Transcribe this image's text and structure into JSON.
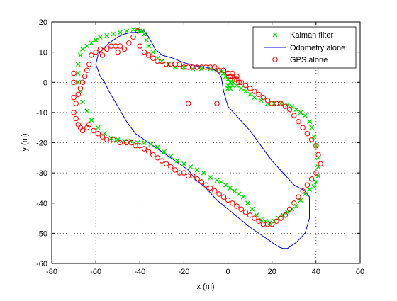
{
  "chart_data": {
    "type": "scatter",
    "xlabel": "x (m)",
    "ylabel": "y (m)",
    "xlim": [
      -80,
      60
    ],
    "ylim": [
      -60,
      20
    ],
    "xticks": [
      -80,
      -60,
      -40,
      -20,
      0,
      20,
      40,
      60
    ],
    "yticks": [
      -60,
      -50,
      -40,
      -30,
      -20,
      -10,
      0,
      10,
      20
    ],
    "xtick_labels": [
      "-80",
      "-60",
      "-40",
      "-20",
      "0",
      "20",
      "40",
      "60"
    ],
    "ytick_labels": [
      "-60",
      "-50",
      "-40",
      "-30",
      "-20",
      "-10",
      "0",
      "10",
      "20"
    ],
    "grid": true,
    "legend_position": "top-right",
    "series": [
      {
        "name": "Kalman filter",
        "marker": "x",
        "color": "#00dd00",
        "x": [
          -40,
          -39,
          -38,
          -37,
          -36,
          -34,
          -32,
          -30,
          -27,
          -24,
          -20,
          -16,
          -12,
          -8,
          -5,
          -3,
          -2,
          -1,
          0,
          2,
          4,
          6,
          8,
          10,
          12,
          15,
          18,
          21,
          24,
          27,
          29,
          31,
          33,
          35,
          37,
          38,
          39,
          40,
          41,
          41,
          41,
          40,
          39,
          37,
          35,
          33,
          31,
          29,
          27,
          25,
          23,
          21,
          19,
          17,
          15,
          13,
          11,
          9,
          7,
          5,
          3,
          1,
          -1,
          -3,
          -5,
          -8,
          -11,
          -14,
          -17,
          -20,
          -23,
          -26,
          -29,
          -32,
          -35,
          -38,
          -41,
          -44,
          -47,
          -50,
          -53,
          -56,
          -59,
          -62,
          -64,
          -66,
          -67,
          -68,
          -68,
          -68,
          -67,
          -66,
          -64,
          -62,
          -60,
          -58,
          -55,
          -52,
          -49,
          -46,
          -43,
          -41,
          0,
          0,
          1,
          1,
          2
        ],
        "y": [
          17,
          17,
          16,
          14,
          12,
          10,
          8,
          7,
          6,
          5,
          5,
          4.5,
          4.5,
          4.5,
          4,
          3.5,
          3,
          2,
          1,
          0,
          -1,
          -2,
          -3,
          -4,
          -5,
          -6,
          -7,
          -7,
          -7,
          -7.5,
          -8,
          -9,
          -10,
          -11,
          -13,
          -15,
          -18,
          -21,
          -25,
          -28,
          -31,
          -33,
          -34.5,
          -35.5,
          -37,
          -39,
          -41,
          -42,
          -43,
          -44,
          -45,
          -46,
          -46.5,
          -46,
          -45.5,
          -44,
          -42,
          -40,
          -38,
          -37,
          -36,
          -35,
          -34,
          -33,
          -32.5,
          -31.5,
          -30,
          -29,
          -28,
          -27,
          -26,
          -24.5,
          -23,
          -21.5,
          -20.5,
          -20,
          -20,
          -19.5,
          -19.5,
          -19,
          -18.5,
          -17,
          -15,
          -12.5,
          -9.5,
          -6.5,
          -3,
          0,
          3,
          6,
          9,
          11,
          12,
          13,
          14,
          15,
          15.5,
          16,
          16.5,
          17,
          17.5,
          17.5,
          -2,
          -1,
          -2,
          0,
          -1
        ]
      },
      {
        "name": "Odometry alone",
        "marker": "line",
        "color": "#0000cc",
        "x": [
          -42,
          -38,
          -36,
          -33,
          -30,
          -25,
          -20,
          -15,
          -10,
          -6,
          -4,
          -3,
          -2,
          0,
          5,
          10,
          15,
          20,
          25,
          30,
          35,
          37,
          37,
          35,
          31,
          27,
          25,
          23,
          20,
          16,
          10,
          5,
          0,
          -5,
          -10,
          -15,
          -18,
          -22,
          -26,
          -30,
          -34,
          -38,
          -42,
          -46,
          -50,
          -54,
          -56,
          -58,
          -59,
          -60,
          -59,
          -57,
          -54,
          -52,
          -50,
          -47,
          -44,
          -42
        ],
        "y": [
          16.5,
          17,
          15,
          11,
          9,
          8,
          6.5,
          5.5,
          5,
          4,
          3,
          1.5,
          -3,
          -8,
          -12,
          -16,
          -21,
          -26,
          -30,
          -34,
          -36,
          -38,
          -45,
          -50,
          -53,
          -55,
          -55,
          -54.5,
          -53,
          -51,
          -48,
          -45,
          -42,
          -39,
          -35,
          -32,
          -29,
          -27,
          -25,
          -23,
          -21,
          -19,
          -17,
          -13,
          -8,
          -3,
          0,
          2,
          4,
          6,
          9,
          11,
          13,
          14,
          15,
          16,
          16.5,
          16.5
        ]
      },
      {
        "name": "GPS alone",
        "marker": "o",
        "color": "#ee0000",
        "x": [
          -41,
          -43,
          -45,
          -47,
          -49,
          -50,
          -51,
          -53,
          -55,
          -57,
          -58,
          -60,
          -62,
          -63,
          -64,
          -65,
          -66,
          -67,
          -68,
          -69,
          -70,
          -70,
          -70,
          -70,
          -69,
          -68,
          -67,
          -66,
          -64,
          -63,
          -61,
          -59,
          -57,
          -55,
          -52,
          -49,
          -46,
          -44,
          -42,
          -40,
          -38,
          -36,
          -34,
          -32,
          -30,
          -28,
          -26,
          -24,
          -22,
          -20,
          -18,
          -16,
          -14,
          -12,
          -10,
          -8,
          -6,
          -4,
          -2,
          0,
          2,
          4,
          6,
          8,
          10,
          12,
          14,
          16,
          18,
          20,
          22,
          24,
          26,
          28,
          30,
          32,
          34,
          36,
          38,
          40,
          42,
          41,
          40,
          38,
          36,
          34,
          32,
          30,
          28,
          26,
          24,
          22,
          20,
          18,
          16,
          14,
          12,
          10,
          8,
          6,
          4,
          2,
          0,
          -2,
          -4,
          -6,
          -8,
          -10,
          -12,
          -14,
          -16,
          -18,
          -20,
          -22,
          -24,
          -26,
          -28,
          -30,
          -32,
          -34,
          -36,
          -38,
          -40,
          -18,
          -5,
          0,
          1,
          2,
          3,
          4,
          5
        ],
        "y": [
          17,
          15,
          13,
          11,
          12,
          10,
          12,
          12,
          11,
          9,
          11,
          10,
          9,
          6,
          4,
          2,
          0,
          -2,
          -4,
          -7,
          -10,
          -5,
          0,
          3,
          -12,
          -14,
          -15,
          -16,
          -15,
          -14,
          -16,
          -17,
          -18,
          -19,
          -19,
          -20,
          -20,
          -20,
          -21,
          -21,
          -22,
          -23,
          -24,
          -25,
          -26,
          -27,
          -28,
          -29,
          -30,
          -30,
          -31,
          -31,
          -32,
          -33,
          -34,
          -35,
          -36,
          -37,
          -38,
          -39,
          -40,
          -41,
          -42,
          -43,
          -44,
          -45,
          -46,
          -47,
          -47,
          -47,
          -46,
          -45,
          -44,
          -42,
          -40,
          -38,
          -36,
          -34,
          -32,
          -30,
          -27,
          -24,
          -21,
          -19,
          -17,
          -15,
          -13,
          -11,
          -9,
          -8,
          -7,
          -7,
          -7,
          -6,
          -5,
          -4,
          -3,
          -2,
          -1,
          0,
          1,
          2,
          3,
          4,
          4,
          5,
          5,
          5,
          5,
          5,
          5,
          5,
          5,
          6,
          6,
          6,
          6,
          7,
          7,
          8,
          9,
          10,
          12,
          -7,
          -7,
          3,
          2,
          3,
          1,
          2,
          0
        ]
      }
    ]
  }
}
